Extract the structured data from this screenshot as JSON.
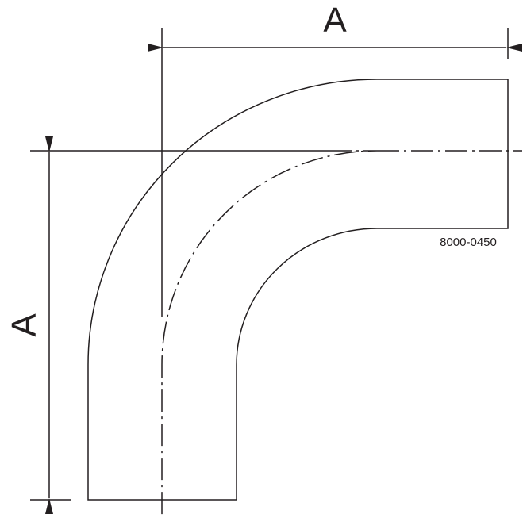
{
  "drawing": {
    "dimension_top_label": "A",
    "dimension_left_label": "A",
    "part_number": "8000-0450",
    "line_color": "#231f20"
  }
}
